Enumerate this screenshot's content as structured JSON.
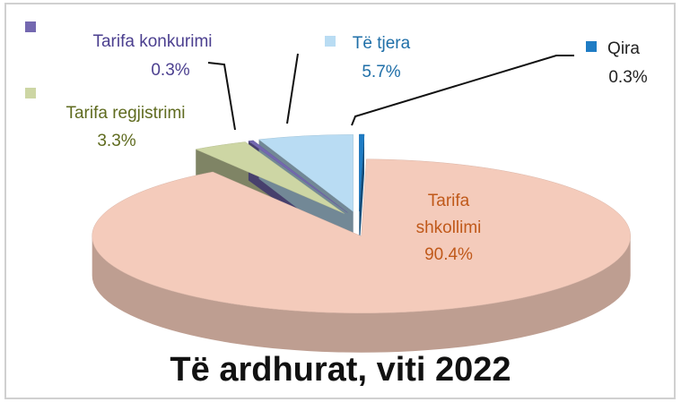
{
  "chart_data": {
    "type": "pie",
    "title": "Të ardhurat, viti 2022",
    "categories": [
      "Qira",
      "Tarifa shkollimi",
      "Tarifa regjistrimi",
      "Tarifa konkurimi",
      "Të tjera"
    ],
    "values": [
      0.3,
      90.4,
      3.3,
      0.3,
      5.7
    ],
    "value_labels": [
      "0.3%",
      "90.4%",
      "3.3%",
      "0.3%",
      "5.7%"
    ],
    "colors": [
      "#1f7cc4",
      "#f4cbbb",
      "#cdd6a4",
      "#7468b0",
      "#b9dcf3"
    ]
  }
}
